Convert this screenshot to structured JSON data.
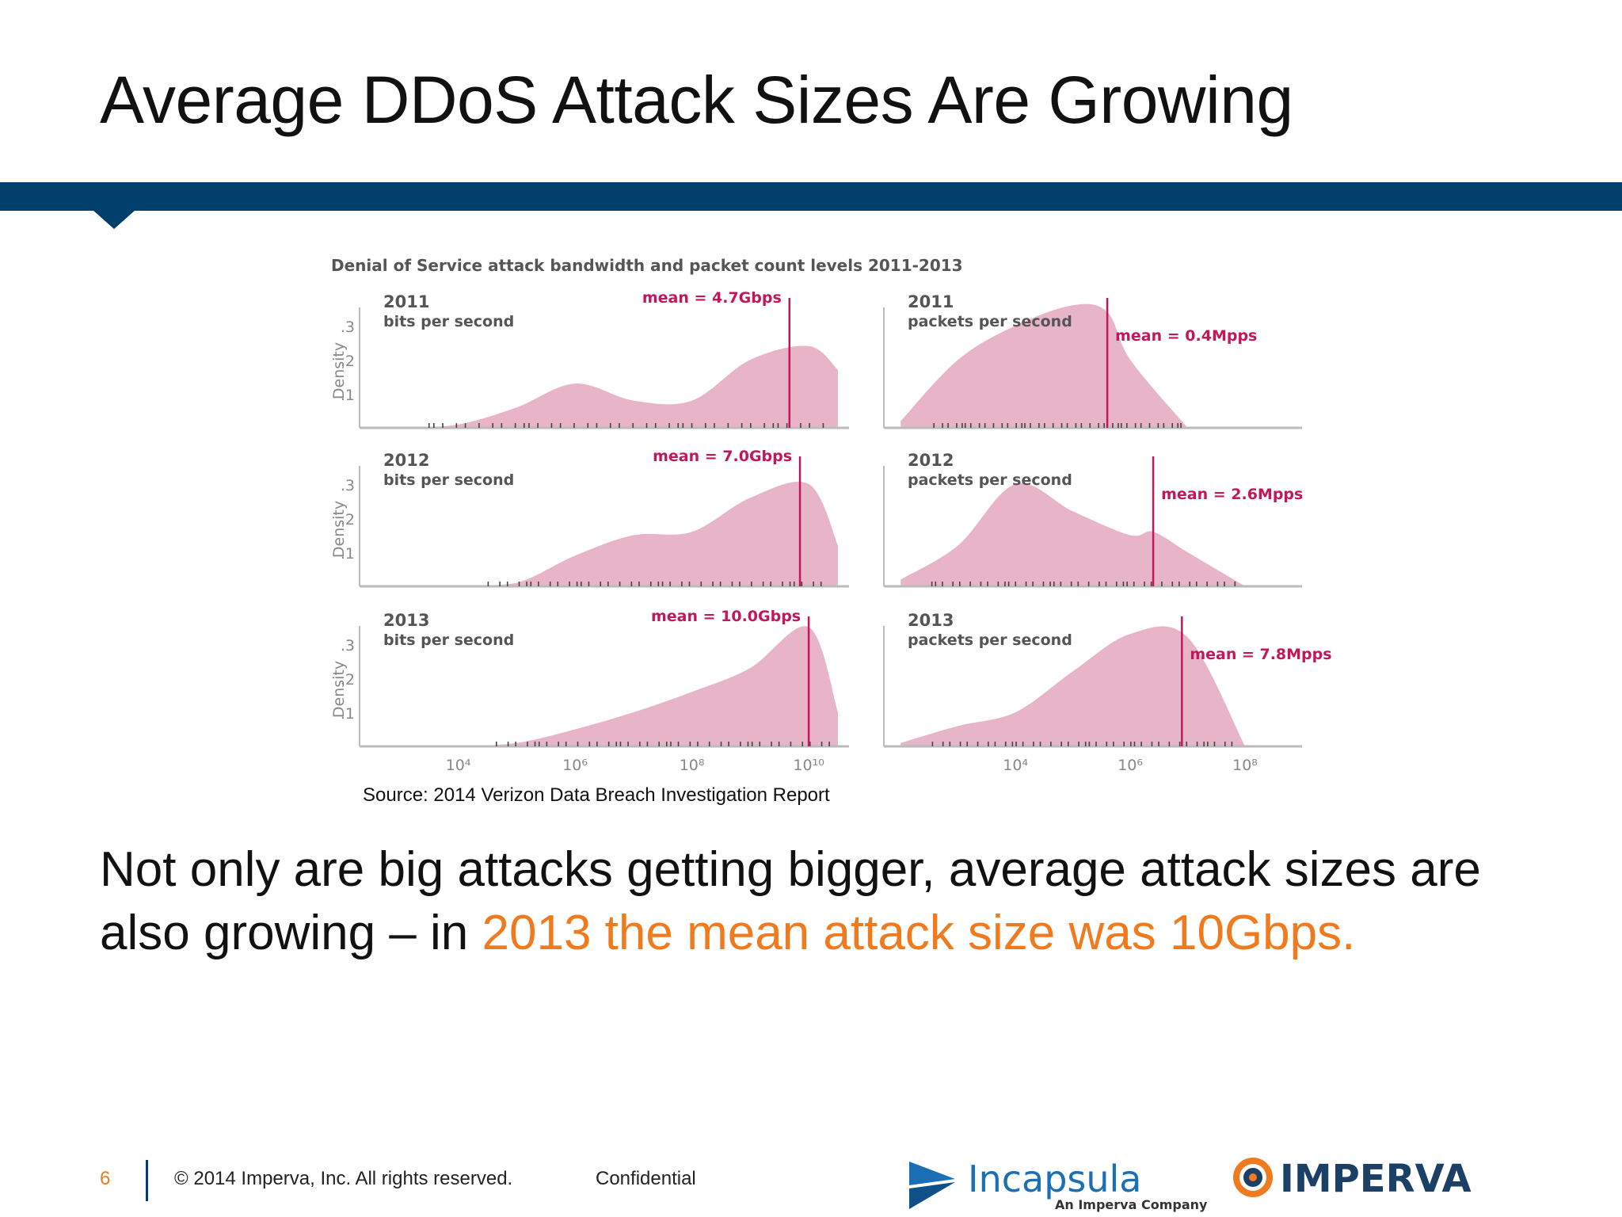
{
  "slide": {
    "title": "Average DDoS Attack Sizes Are Growing",
    "source": "Source: 2014 Verizon Data Breach Investigation Report",
    "body_plain": "Not only are big attacks getting bigger, average attack sizes are also growing – in ",
    "body_highlight": "2013 the mean attack size was 10Gbps.",
    "highlight_color": "#f07a1e",
    "brand_color": "#003f6b"
  },
  "footer": {
    "page_number": "6",
    "copyright": "© 2014 Imperva, Inc. All rights reserved.",
    "confidential": "Confidential",
    "logo_incapsula": "Incapsula",
    "logo_incapsula_sub": "An Imperva Company",
    "logo_imperva": "IMPERVA"
  },
  "chart_data": {
    "type": "area",
    "title": "Denial of Service attack bandwidth and packet count levels 2011-2013",
    "ylabel": "Density",
    "y_ticks": [
      ".1",
      ".2",
      ".3"
    ],
    "fill_color": "#e8b4c8",
    "mean_color": "#c2185b",
    "panels": [
      {
        "year": "2011",
        "metric": "bits per second",
        "mean_label": "mean = 4.7Gbps",
        "mean_log10": 9.67,
        "x_log10": [
          3,
          4,
          5,
          6,
          7,
          8,
          9,
          10,
          10.5
        ],
        "density": [
          0,
          0.01,
          0.06,
          0.13,
          0.08,
          0.08,
          0.2,
          0.24,
          0.17
        ]
      },
      {
        "year": "2011",
        "metric": "packets per second",
        "mean_label": "mean = 0.4Mpps",
        "mean_log10": 5.6,
        "x_log10": [
          2,
          3,
          4,
          5,
          5.6,
          6,
          7
        ],
        "density": [
          0.02,
          0.2,
          0.3,
          0.36,
          0.34,
          0.2,
          0
        ]
      },
      {
        "year": "2012",
        "metric": "bits per second",
        "mean_label": "mean = 7.0Gbps",
        "mean_log10": 9.85,
        "x_log10": [
          4,
          5,
          6,
          7,
          8,
          9,
          10,
          10.5
        ],
        "density": [
          0,
          0.01,
          0.09,
          0.15,
          0.16,
          0.26,
          0.3,
          0.12
        ]
      },
      {
        "year": "2012",
        "metric": "packets per second",
        "mean_label": "mean = 2.6Mpps",
        "mean_log10": 6.4,
        "x_log10": [
          2,
          3,
          4,
          5,
          6,
          6.4,
          7,
          8
        ],
        "density": [
          0.02,
          0.12,
          0.3,
          0.22,
          0.15,
          0.16,
          0.1,
          0
        ]
      },
      {
        "year": "2013",
        "metric": "bits per second",
        "mean_label": "mean = 10.0Gbps",
        "mean_log10": 10,
        "x_log10": [
          4,
          5,
          6,
          7,
          8,
          9,
          10,
          10.5
        ],
        "density": [
          0,
          0.01,
          0.05,
          0.1,
          0.16,
          0.23,
          0.35,
          0.1
        ]
      },
      {
        "year": "2013",
        "metric": "packets per second",
        "mean_label": "mean = 7.8Mpps",
        "mean_log10": 6.9,
        "x_log10": [
          2,
          3,
          4,
          5,
          6,
          7,
          8
        ],
        "density": [
          0.01,
          0.06,
          0.1,
          0.22,
          0.33,
          0.32,
          0
        ]
      }
    ],
    "x_ticks_bits": [
      "10⁴",
      "10⁶",
      "10⁸",
      "10¹⁰"
    ],
    "x_ticks_packets": [
      "10⁴",
      "10⁶",
      "10⁸"
    ]
  }
}
